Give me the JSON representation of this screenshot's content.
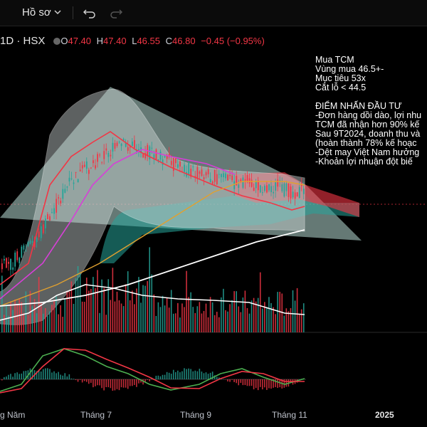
{
  "toolbar": {
    "layout_name": "Hồ sơ",
    "chevron_icon": "chevron-down-icon",
    "undo_icon": "undo-icon",
    "redo_icon": "redo-icon"
  },
  "legend": {
    "symbol": "1D · HSX",
    "o_label": "O",
    "o_value": "47.40",
    "h_label": "H",
    "h_value": "47.40",
    "l_label": "L",
    "l_value": "46.55",
    "c_label": "C",
    "c_value": "46.80",
    "change": "−0.45 (−0.95%)"
  },
  "annotation": {
    "lines": [
      "Mua TCM",
      "Vùng mua 46.5+-",
      "Mục tiêu 53x",
      "Cắt lỗ < 44.5"
    ],
    "heading": "ĐIỂM NHẤN ĐẦU TƯ",
    "bullets": [
      "-Đơn hàng dồi dào, lợi nhu",
      "TCM đã nhận hơn 90% kế",
      "Sau 9T2024, doanh thu và",
      " (hoàn thành 78% kế hoạc",
      "-Dệt may Việt Nam hưởng",
      "-Khoản lợi nhuận đột biế"
    ]
  },
  "xaxis": {
    "labels": [
      "g Năm",
      "Tháng 7",
      "Tháng 9",
      "Tháng 11",
      "2025"
    ]
  },
  "colors": {
    "up": "#26a69a",
    "down": "#f23645",
    "ma_fast": "#f23645",
    "ma_mid": "#d73fd7",
    "ma_slow": "#e0a030",
    "ma_long": "#ffffff",
    "macd": "#4caf50",
    "signal": "#f23645"
  },
  "chart_data": {
    "type": "candlestick",
    "x": [
      "g Năm",
      "Tháng 7",
      "Tháng 9",
      "Tháng 11",
      "2025"
    ],
    "current": {
      "open": 47.4,
      "high": 47.4,
      "low": 46.55,
      "close": 46.8,
      "change": -0.45,
      "change_pct": -0.95
    },
    "price_index": [
      30,
      31,
      33,
      35,
      38,
      42,
      46,
      49,
      51,
      53,
      55,
      56,
      57,
      57,
      56,
      55,
      54,
      53,
      52,
      51,
      51,
      50,
      50,
      49,
      49,
      48,
      48,
      48,
      47,
      47,
      47
    ]
  }
}
